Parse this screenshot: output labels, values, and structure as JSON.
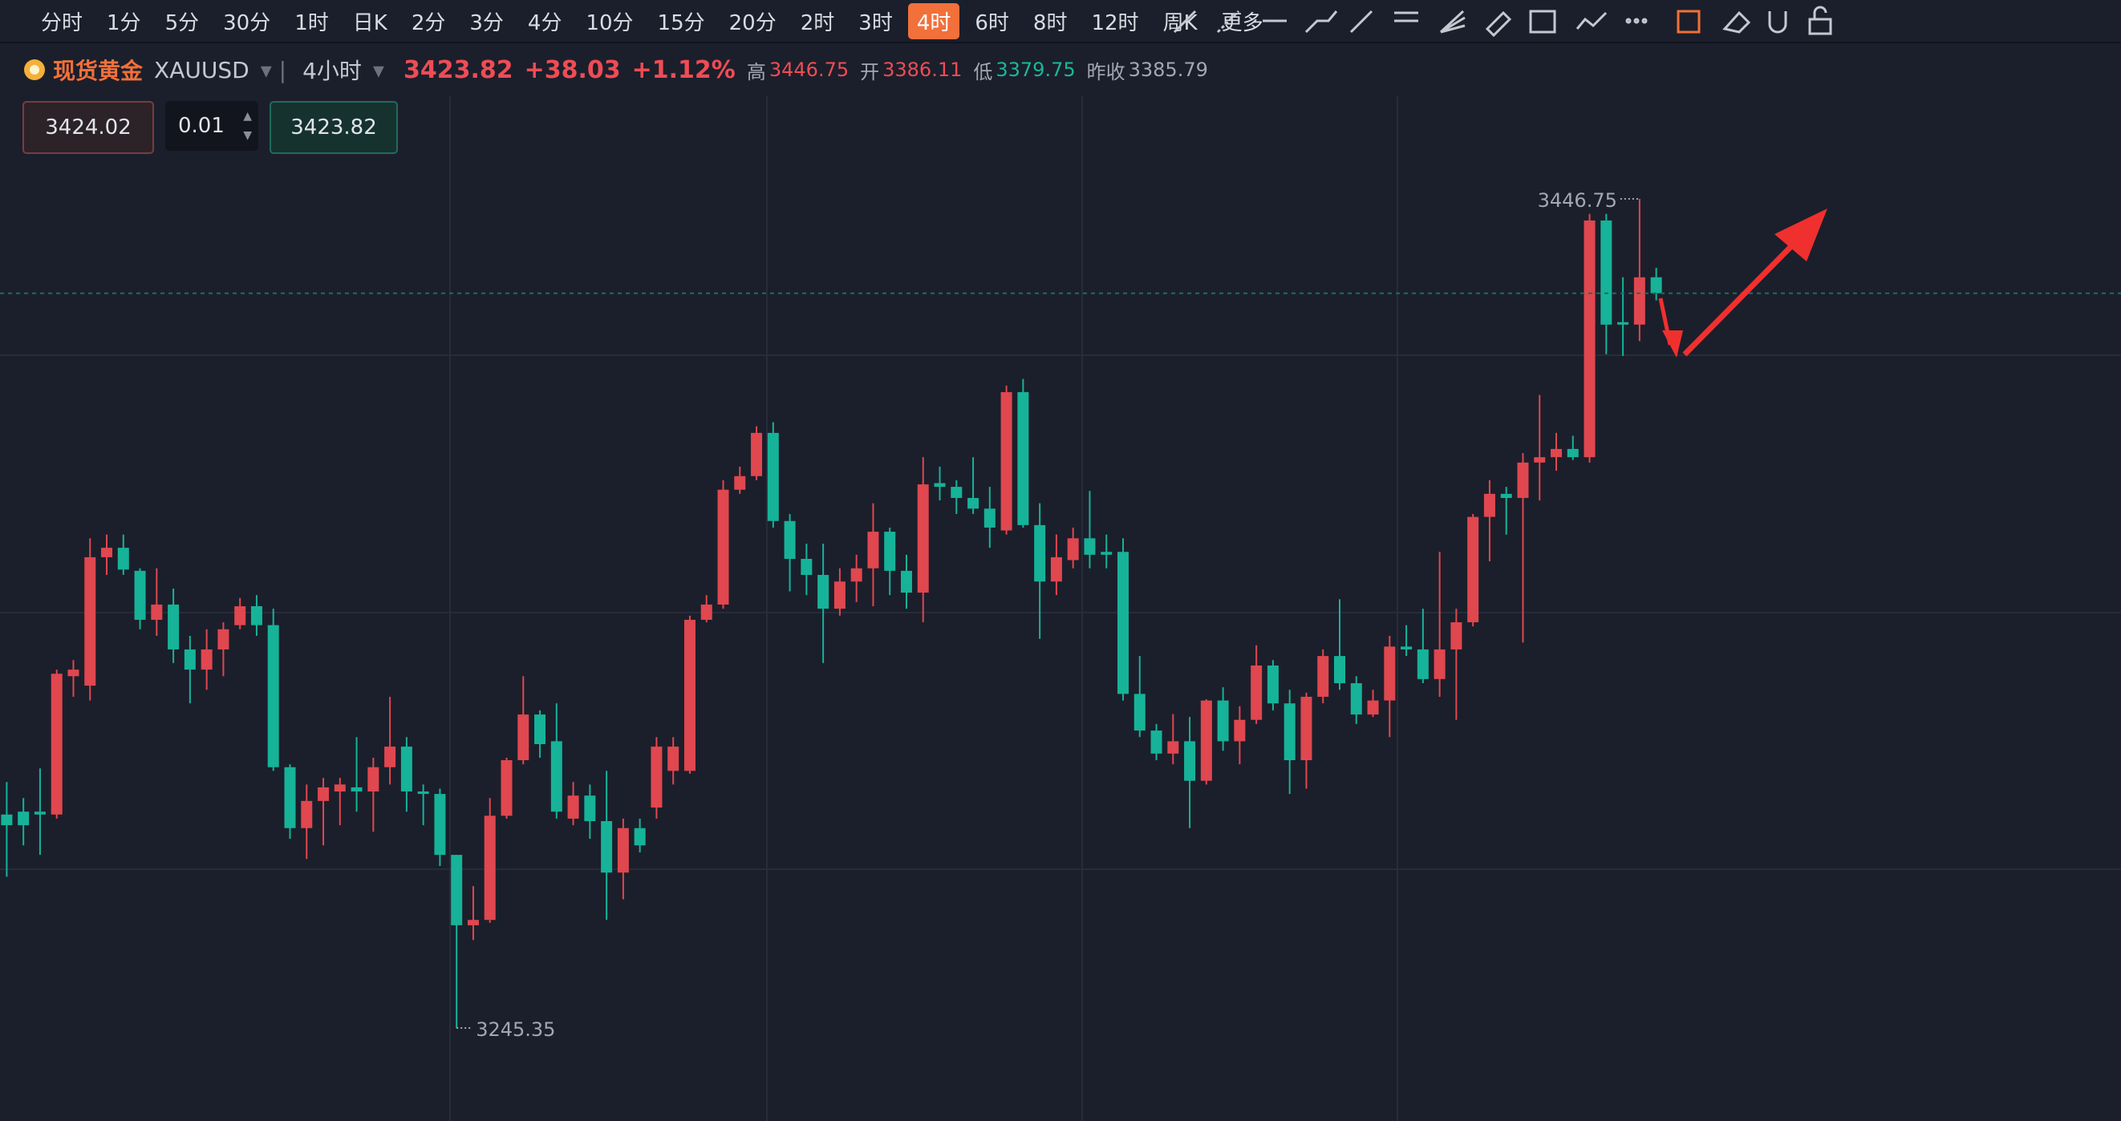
{
  "toolbar": {
    "timeframes": [
      "分时",
      "1分",
      "5分",
      "30分",
      "1时",
      "日K",
      "2分",
      "3分",
      "4分",
      "10分",
      "15分",
      "20分",
      "2时",
      "3时",
      "4时",
      "6时",
      "8时",
      "12时",
      "周K",
      "更多"
    ],
    "active": "4时"
  },
  "header": {
    "name": "现货黄金",
    "symbol": "XAUUSD",
    "period": "4小时",
    "price": "3423.82",
    "change": "+38.03",
    "change_pct": "+1.12%",
    "high_label": "高",
    "high": "3446.75",
    "open_label": "开",
    "open": "3386.11",
    "low_label": "低",
    "low": "3379.75",
    "prev_close_label": "昨收",
    "prev_close": "3385.79"
  },
  "order": {
    "sell": "3424.02",
    "qty": "0.01",
    "buy": "3423.82"
  },
  "chart_data": {
    "type": "candlestick",
    "up_color": "#e0474f",
    "down_color": "#16b399",
    "open": [
      3297.2,
      3297.9,
      3297.9,
      3297.2,
      3330.8,
      3328.5,
      3359.7,
      3362.0,
      3356.4,
      3344.5,
      3348.2,
      3337.3,
      3332.4,
      3337.3,
      3343.2,
      3347.8,
      3343.2,
      3308.7,
      3293.9,
      3300.5,
      3302.8,
      3303.8,
      3302.8,
      3308.7,
      3313.7,
      3302.8,
      3302.2,
      3287.4,
      3270.3,
      3271.6,
      3296.9,
      3310.4,
      3321.5,
      3315.0,
      3296.2,
      3301.8,
      3295.6,
      3283.1,
      3293.9,
      3298.9,
      3307.8,
      3307.8,
      3344.5,
      3348.2,
      3376.1,
      3379.4,
      3389.9,
      3368.5,
      3359.3,
      3355.4,
      3347.2,
      3353.8,
      3357.0,
      3365.9,
      3356.4,
      3351.1,
      3377.7,
      3376.8,
      3374.1,
      3371.5,
      3366.2,
      3399.8,
      3367.5,
      3353.8,
      3359.0,
      3364.3,
      3361.0,
      3361.0,
      3326.5,
      3317.6,
      3312.0,
      3315.0,
      3305.4,
      3324.9,
      3315.0,
      3320.2,
      3333.4,
      3324.2,
      3310.4,
      3325.8,
      3335.7,
      3329.1,
      3321.5,
      3324.9,
      3338.0,
      3337.3,
      3330.1,
      3337.3,
      3343.9,
      3369.5,
      3375.1,
      3374.1,
      3382.7,
      3384.0,
      3386.0,
      3384.0,
      3441.5,
      3416.8,
      3416.2,
      3427.7
    ],
    "high": [
      3305.1,
      3301.2,
      3308.4,
      3332.4,
      3334.7,
      3364.3,
      3365.2,
      3365.2,
      3357.0,
      3357.0,
      3352.1,
      3340.6,
      3342.2,
      3343.9,
      3349.8,
      3350.5,
      3347.2,
      3309.4,
      3304.5,
      3306.1,
      3306.1,
      3316.0,
      3311.0,
      3325.8,
      3316.0,
      3304.5,
      3303.5,
      3287.4,
      3279.8,
      3301.2,
      3311.0,
      3330.8,
      3322.5,
      3324.2,
      3305.1,
      3304.5,
      3307.8,
      3296.2,
      3296.2,
      3316.0,
      3316.0,
      3345.5,
      3350.5,
      3378.4,
      3381.7,
      3391.5,
      3392.5,
      3370.2,
      3363.0,
      3363.0,
      3357.0,
      3360.3,
      3372.8,
      3366.9,
      3360.3,
      3384.0,
      3381.7,
      3378.4,
      3384.0,
      3376.8,
      3401.4,
      3403.0,
      3372.8,
      3365.2,
      3366.9,
      3375.8,
      3365.2,
      3364.3,
      3335.7,
      3319.2,
      3321.6,
      3320.9,
      3325.2,
      3328.1,
      3323.5,
      3338.3,
      3334.7,
      3327.5,
      3326.8,
      3337.3,
      3349.5,
      3330.8,
      3327.5,
      3340.6,
      3343.2,
      3347.2,
      3361.0,
      3347.2,
      3370.2,
      3378.4,
      3376.8,
      3385.0,
      3399.1,
      3389.9,
      3389.2,
      3443.1,
      3443.1,
      3427.7,
      3446.75,
      3430.0
    ],
    "low": [
      3282.1,
      3289.7,
      3287.4,
      3296.2,
      3325.8,
      3324.9,
      3355.4,
      3355.4,
      3342.2,
      3340.6,
      3334.0,
      3324.2,
      3327.5,
      3330.8,
      3342.2,
      3340.6,
      3307.8,
      3291.3,
      3286.4,
      3289.7,
      3294.6,
      3297.9,
      3293.0,
      3304.5,
      3297.9,
      3294.6,
      3284.7,
      3245.35,
      3266.7,
      3270.9,
      3296.2,
      3309.4,
      3311.0,
      3296.2,
      3294.6,
      3291.3,
      3271.6,
      3276.6,
      3288.0,
      3296.2,
      3304.5,
      3307.1,
      3343.9,
      3347.2,
      3375.1,
      3378.4,
      3366.9,
      3351.4,
      3350.5,
      3334.0,
      3345.5,
      3348.8,
      3347.8,
      3350.5,
      3347.2,
      3343.9,
      3373.5,
      3370.2,
      3370.2,
      3362.0,
      3365.2,
      3366.9,
      3339.9,
      3350.5,
      3357.0,
      3357.0,
      3357.0,
      3324.9,
      3316.0,
      3310.4,
      3309.4,
      3293.9,
      3304.5,
      3312.7,
      3309.4,
      3319.2,
      3322.5,
      3302.2,
      3303.5,
      3324.2,
      3327.5,
      3319.2,
      3320.9,
      3316.0,
      3335.7,
      3329.1,
      3325.8,
      3320.2,
      3342.9,
      3358.7,
      3365.2,
      3339.0,
      3373.5,
      3380.7,
      3383.3,
      3382.7,
      3409.0,
      3408.6,
      3412.2,
      3422.1
    ],
    "close": [
      3294.6,
      3294.6,
      3297.2,
      3331.4,
      3332.4,
      3359.7,
      3362.0,
      3356.7,
      3344.5,
      3348.2,
      3337.3,
      3332.4,
      3337.3,
      3342.2,
      3347.8,
      3343.2,
      3308.7,
      3293.9,
      3300.5,
      3303.8,
      3304.5,
      3302.8,
      3308.7,
      3313.7,
      3302.8,
      3302.2,
      3287.4,
      3270.3,
      3271.6,
      3296.9,
      3310.4,
      3321.5,
      3314.3,
      3297.9,
      3301.8,
      3295.6,
      3283.1,
      3293.9,
      3289.7,
      3313.7,
      3313.7,
      3344.5,
      3348.2,
      3376.1,
      3379.4,
      3389.9,
      3368.5,
      3359.3,
      3355.4,
      3347.2,
      3353.8,
      3357.0,
      3365.9,
      3356.4,
      3351.1,
      3377.4,
      3376.8,
      3374.1,
      3371.5,
      3366.9,
      3399.8,
      3367.5,
      3353.8,
      3359.7,
      3364.3,
      3360.3,
      3360.3,
      3326.5,
      3317.6,
      3312.0,
      3315.0,
      3305.4,
      3324.9,
      3315.0,
      3320.2,
      3333.4,
      3324.2,
      3310.4,
      3325.8,
      3335.7,
      3329.1,
      3321.5,
      3324.9,
      3338.0,
      3337.3,
      3330.1,
      3337.3,
      3343.9,
      3369.5,
      3375.1,
      3374.1,
      3382.7,
      3384.0,
      3386.0,
      3384.0,
      3441.5,
      3416.2,
      3416.2,
      3427.7,
      3423.82
    ]
  }
}
